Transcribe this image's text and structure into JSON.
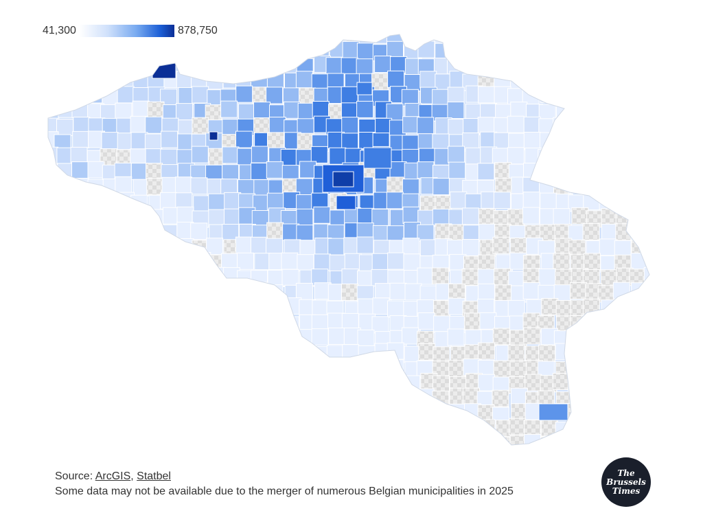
{
  "legend": {
    "min_label": "41,300",
    "max_label": "878,750",
    "min_value": 41300,
    "max_value": 878750,
    "colors": [
      "#ffffff",
      "#cfe0fb",
      "#78aaf0",
      "#1c5fd6",
      "#0b2f96"
    ]
  },
  "footer": {
    "source_prefix": "Source: ",
    "source_links": [
      "ArcGIS",
      "Statbel"
    ],
    "source_separator": ", ",
    "note": "Some data may not be available due to the merger of numerous Belgian municipalities in 2025"
  },
  "logo": {
    "line1": "The",
    "line2": "Brussels",
    "line3": "Times"
  },
  "map": {
    "no_data_fill": "#e4e4e4",
    "border_color": "#ffffff"
  }
}
